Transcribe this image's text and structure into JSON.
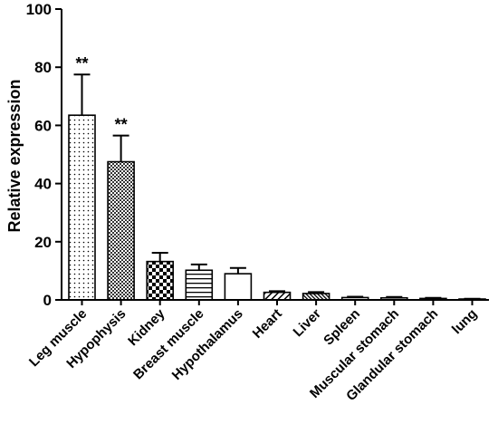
{
  "chart_data": {
    "type": "bar",
    "title": "",
    "xlabel": "",
    "ylabel": "Relative expression",
    "ylim": [
      0,
      100
    ],
    "yticks": [
      0,
      20,
      40,
      60,
      80,
      100
    ],
    "grid": false,
    "categories": [
      "Leg muscle",
      "Hypophysis",
      "Kidney",
      "Breast muscle",
      "Hypothalamus",
      "Heart",
      "Liver",
      "Spleen",
      "Muscular stomach",
      "Glandular stomach",
      "lung"
    ],
    "values": [
      63.5,
      47.5,
      13.2,
      10.2,
      9.0,
      2.6,
      2.2,
      0.8,
      0.7,
      0.5,
      0.3
    ],
    "error": [
      14.0,
      9.0,
      3.0,
      2.0,
      2.0,
      0.4,
      0.5,
      0.3,
      0.3,
      0.2,
      0.1
    ],
    "patterns": [
      "dots",
      "checker-fine",
      "checker-coarse",
      "horizontal-lines",
      "plain",
      "diagonal",
      "diagonal-dense",
      "plain",
      "plain",
      "plain",
      "plain"
    ],
    "annotations": [
      "**",
      "**",
      "",
      "",
      "",
      "",
      "",
      "",
      "",
      "",
      ""
    ]
  }
}
